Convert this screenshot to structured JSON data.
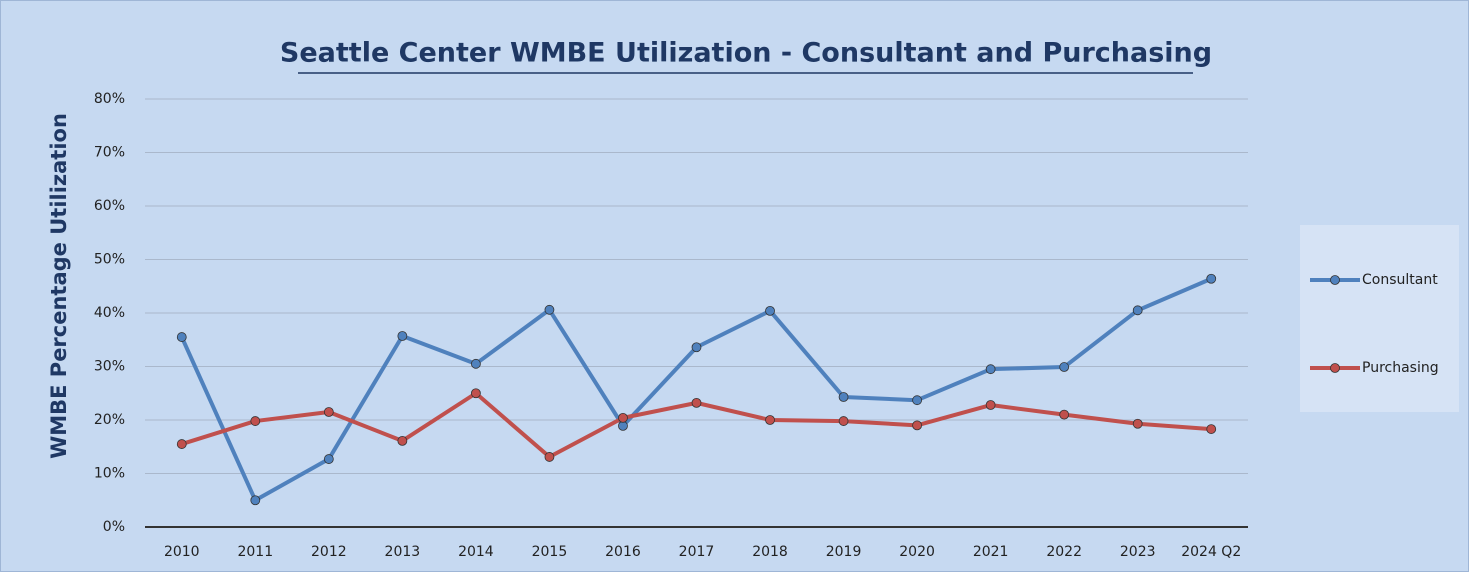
{
  "chart_data": {
    "type": "line",
    "title": "Seattle Center WMBE Utilization - Consultant and Purchasing",
    "y_label": "WMBE Percentage Utilization",
    "categories": [
      "2010",
      "2011",
      "2012",
      "2013",
      "2014",
      "2015",
      "2016",
      "2017",
      "2018",
      "2019",
      "2020",
      "2021",
      "2022",
      "2023",
      "2024 Q2"
    ],
    "series": [
      {
        "name": "Consultant",
        "color": "#4f81bd",
        "values": [
          35.5,
          5.0,
          12.7,
          35.7,
          30.5,
          40.6,
          18.9,
          33.6,
          40.4,
          24.3,
          23.7,
          29.5,
          29.9,
          40.5,
          46.4
        ]
      },
      {
        "name": "Purchasing",
        "color": "#c0504d",
        "values": [
          15.5,
          19.8,
          21.5,
          16.1,
          25.0,
          13.1,
          20.4,
          23.2,
          20.0,
          19.8,
          19.0,
          22.8,
          21.0,
          19.3,
          18.3
        ]
      }
    ],
    "ylim": [
      0,
      80
    ],
    "yticks": [
      {
        "value": 0,
        "label": "0%"
      },
      {
        "value": 10,
        "label": "10%"
      },
      {
        "value": 20,
        "label": "20%"
      },
      {
        "value": 30,
        "label": "30%"
      },
      {
        "value": 40,
        "label": "40%"
      },
      {
        "value": 50,
        "label": "50%"
      },
      {
        "value": 60,
        "label": "60%"
      },
      {
        "value": 70,
        "label": "70%"
      },
      {
        "value": 80,
        "label": "80%"
      }
    ],
    "grid": true,
    "legend": "right"
  }
}
